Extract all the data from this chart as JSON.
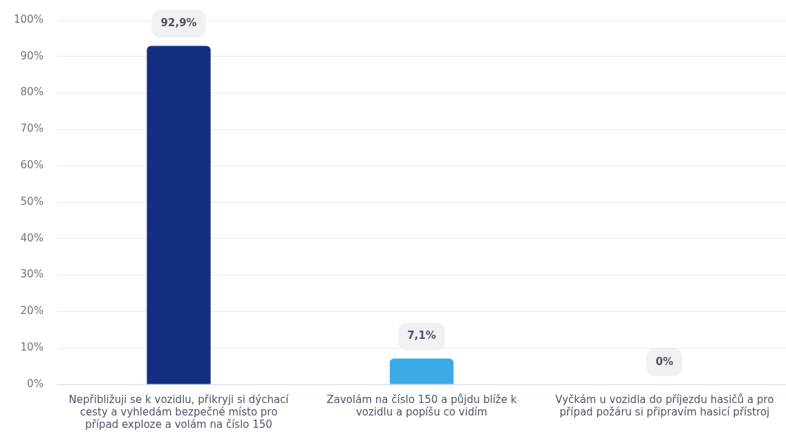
{
  "chart_data": {
    "type": "bar",
    "categories": [
      "Nepřibližuji se k vozidlu, přikryji si dýchací cesty a vyhledám bezpečné místo pro případ exploze a volám na číslo 150",
      "Zavolám na číslo 150 a půjdu blíže k vozidlu a popíšu co vidím",
      "Vyčkám u vozidla do příjezdu hasičů a pro případ požáru si připravím hasicí přístroj"
    ],
    "values": [
      92.9,
      7.1,
      0
    ],
    "colors": [
      "#142f7f",
      "#3aabe5",
      "#3aabe5"
    ],
    "value_labels": [
      "92,9%",
      "7,1%",
      "0%"
    ],
    "ylim": [
      0,
      100
    ],
    "yticks": [
      {
        "value": 0,
        "label": "0%"
      },
      {
        "value": 10,
        "label": "10%"
      },
      {
        "value": 20,
        "label": "20%"
      },
      {
        "value": 30,
        "label": "30%"
      },
      {
        "value": 40,
        "label": "40%"
      },
      {
        "value": 50,
        "label": "50%"
      },
      {
        "value": 60,
        "label": "60%"
      },
      {
        "value": 70,
        "label": "70%"
      },
      {
        "value": 80,
        "label": "80%"
      },
      {
        "value": 90,
        "label": "90%"
      },
      {
        "value": 100,
        "label": "100%"
      }
    ],
    "grid": "y",
    "legend": false
  }
}
